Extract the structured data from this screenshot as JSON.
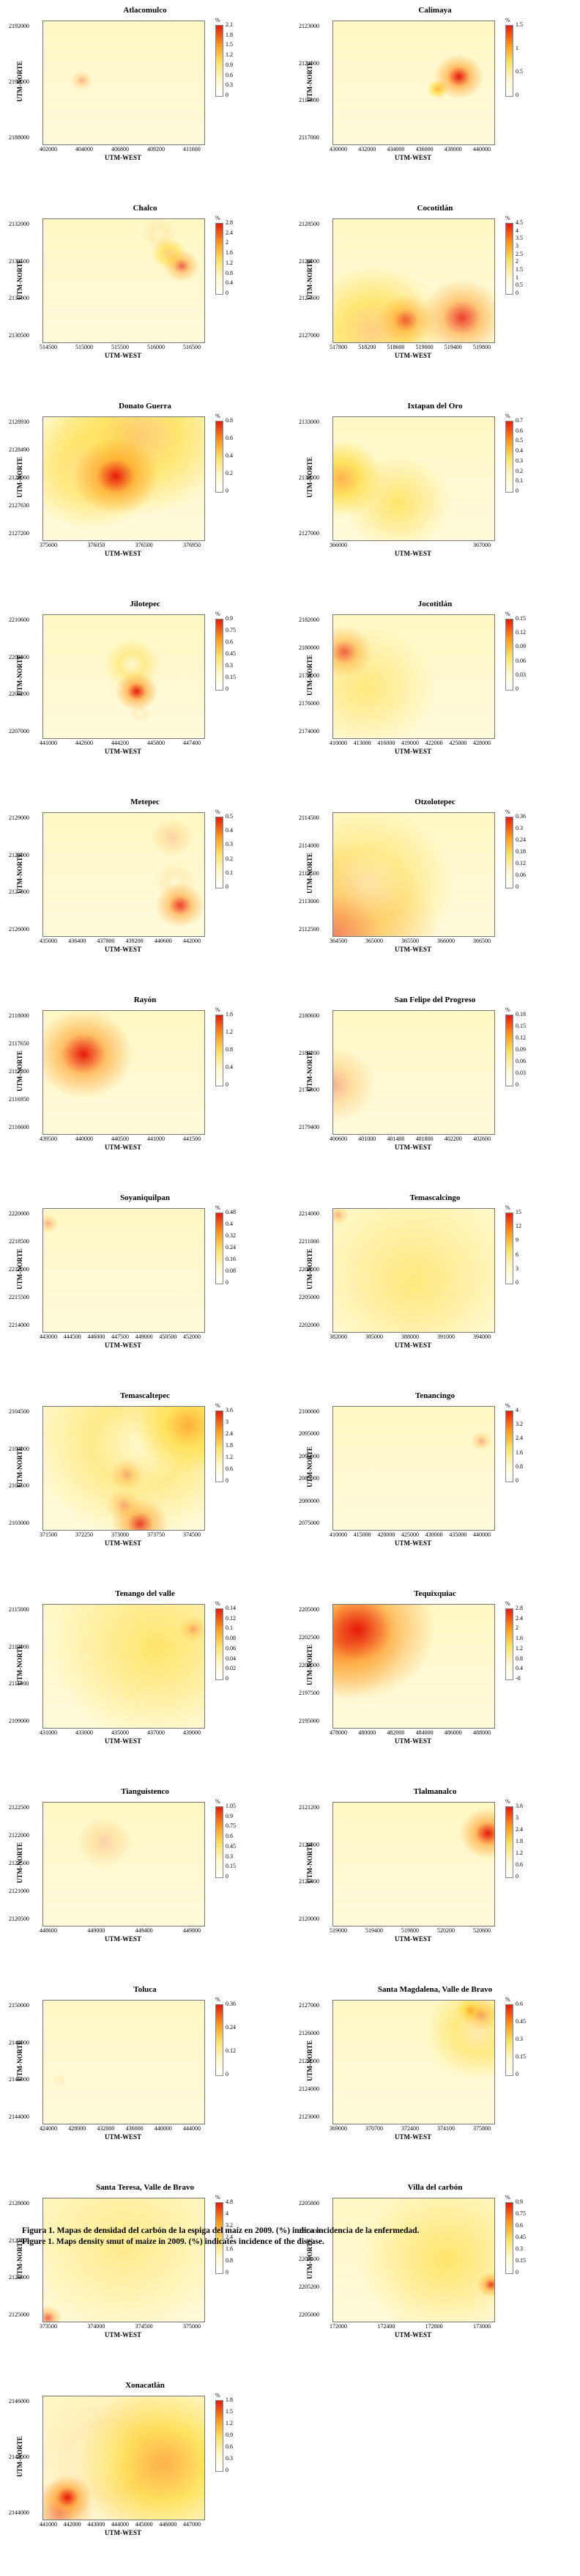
{
  "chart_data": [
    {
      "type": "heatmap",
      "title": "Atlacomulco",
      "xlabel": "UTM-WEST",
      "ylabel": "UTM-NORTE",
      "x_ticks": [
        "402000",
        "404000",
        "406800",
        "409200",
        "411600"
      ],
      "y_ticks": [
        "2192000",
        "2190000",
        "2188000"
      ],
      "color_ticks": [
        "2.1",
        "1.8",
        "1.5",
        "1.2",
        "0.9",
        "0.6",
        "0.3",
        "0"
      ],
      "color_unit": "%",
      "hotspots": [
        [
          0.24,
          0.48,
          0.03,
          0.8
        ]
      ]
    },
    {
      "type": "heatmap",
      "title": "Calimaya",
      "xlabel": "UTM-WEST",
      "ylabel": "UTM-NORTE",
      "x_ticks": [
        "430000",
        "432000",
        "434000",
        "436000",
        "438000",
        "440000"
      ],
      "y_ticks": [
        "2123000",
        "2121000",
        "2119000",
        "2117000"
      ],
      "color_ticks": [
        "1.5",
        "1",
        "0.5",
        "0"
      ],
      "color_unit": "%",
      "hotspots": [
        [
          0.78,
          0.45,
          0.07,
          1.0
        ],
        [
          0.65,
          0.55,
          0.03,
          0.6
        ]
      ]
    },
    {
      "type": "heatmap",
      "title": "Chalco",
      "xlabel": "UTM-WEST",
      "ylabel": "UTM-NORTE",
      "x_ticks": [
        "514500",
        "515000",
        "515500",
        "516000",
        "516500"
      ],
      "y_ticks": [
        "2132000",
        "2131500",
        "2131000",
        "2130500"
      ],
      "color_ticks": [
        "2.8",
        "2.4",
        "2",
        "1.6",
        "1.2",
        "0.8",
        "0.4",
        "0"
      ],
      "color_unit": "%",
      "hotspots": [
        [
          0.72,
          0.12,
          0.05,
          0.7
        ],
        [
          0.86,
          0.38,
          0.05,
          0.9
        ],
        [
          0.78,
          0.28,
          0.05,
          0.5
        ]
      ]
    },
    {
      "type": "heatmap",
      "title": "Cocotitlán",
      "xlabel": "UTM-WEST",
      "ylabel": "UTM-NORTE",
      "x_ticks": [
        "517800",
        "518200",
        "518600",
        "519000",
        "519400",
        "519800"
      ],
      "y_ticks": [
        "2128500",
        "2128000",
        "2127500",
        "2127000"
      ],
      "color_ticks": [
        "4.5",
        "4",
        "3.5",
        "3",
        "2.5",
        "2",
        "1.5",
        "1",
        "0.5",
        "0"
      ],
      "color_unit": "%",
      "hotspots": [
        [
          0.45,
          0.82,
          0.08,
          0.9
        ],
        [
          0.8,
          0.8,
          0.12,
          0.95
        ],
        [
          0.25,
          0.9,
          0.2,
          0.5
        ]
      ]
    },
    {
      "type": "heatmap",
      "title": "Donato Guerra",
      "xlabel": "UTM-WEST",
      "ylabel": "UTM-NORTE",
      "x_ticks": [
        "375600",
        "376050",
        "376500",
        "376950"
      ],
      "y_ticks": [
        "2128930",
        "2128490",
        "2128060",
        "2127630",
        "2127200"
      ],
      "color_ticks": [
        "0.8",
        "0.6",
        "0.4",
        "0.2",
        "0"
      ],
      "color_unit": "%",
      "hotspots": [
        [
          0.45,
          0.48,
          0.12,
          1.0
        ],
        [
          0.6,
          0.15,
          0.25,
          0.5
        ],
        [
          0.3,
          0.4,
          0.2,
          0.45
        ]
      ]
    },
    {
      "type": "heatmap",
      "title": "Ixtapan del Oro",
      "xlabel": "UTM-WEST",
      "ylabel": "UTM-NORTE",
      "x_ticks": [
        "366000",
        "367000"
      ],
      "y_ticks": [
        "2133000",
        "2130000",
        "2127000"
      ],
      "color_ticks": [
        "0.7",
        "0.6",
        "0.5",
        "0.4",
        "0.3",
        "0.2",
        "0.1",
        "0"
      ],
      "color_unit": "%",
      "hotspots": [
        [
          0.05,
          0.5,
          0.12,
          0.6
        ],
        [
          0.4,
          0.7,
          0.15,
          0.3
        ]
      ]
    },
    {
      "type": "heatmap",
      "title": "Jilotepec",
      "xlabel": "UTM-WEST",
      "ylabel": "UTM-NORTE",
      "x_ticks": [
        "441000",
        "442600",
        "444200",
        "445800",
        "447400"
      ],
      "y_ticks": [
        "2210600",
        "2209400",
        "2208200",
        "2207000"
      ],
      "color_ticks": [
        "0.9",
        "0.75",
        "0.6",
        "0.45",
        "0.3",
        "0.15",
        "0"
      ],
      "color_unit": "%",
      "hotspots": [
        [
          0.58,
          0.62,
          0.06,
          1.0
        ],
        [
          0.6,
          0.8,
          0.03,
          0.7
        ],
        [
          0.55,
          0.4,
          0.08,
          0.35
        ]
      ]
    },
    {
      "type": "heatmap",
      "title": "Jocotitlán",
      "xlabel": "UTM-WEST",
      "ylabel": "UTM-NORTE",
      "x_ticks": [
        "410000",
        "413000",
        "416000",
        "419000",
        "422000",
        "425000",
        "428000"
      ],
      "y_ticks": [
        "2182000",
        "2180000",
        "2178000",
        "2176000",
        "2174000"
      ],
      "color_ticks": [
        "0.15",
        "0.12",
        "0.09",
        "0.06",
        "0.03",
        "0"
      ],
      "color_unit": "%",
      "hotspots": [
        [
          0.07,
          0.3,
          0.08,
          0.9
        ],
        [
          0.2,
          0.6,
          0.2,
          0.25
        ]
      ]
    },
    {
      "type": "heatmap",
      "title": "Metepec",
      "xlabel": "UTM-WEST",
      "ylabel": "UTM-NORTE",
      "x_ticks": [
        "435000",
        "436400",
        "437800",
        "439200",
        "440600",
        "442000"
      ],
      "y_ticks": [
        "2129000",
        "2128000",
        "2127000",
        "2126000"
      ],
      "color_ticks": [
        "0.5",
        "0.4",
        "0.3",
        "0.2",
        "0.1",
        "0"
      ],
      "color_unit": "%",
      "hotspots": [
        [
          0.8,
          0.2,
          0.06,
          0.75
        ],
        [
          0.82,
          0.55,
          0.06,
          0.7
        ],
        [
          0.85,
          0.75,
          0.07,
          0.95
        ]
      ]
    },
    {
      "type": "heatmap",
      "title": "Otzolotepec",
      "xlabel": "UTM-WEST",
      "ylabel": "UTM-NORTE",
      "x_ticks": [
        "364500",
        "365000",
        "365500",
        "366000",
        "366500"
      ],
      "y_ticks": [
        "2114500",
        "2114000",
        "2113500",
        "2113000",
        "2112500"
      ],
      "color_ticks": [
        "0.36",
        "0.3",
        "0.24",
        "0.18",
        "0.12",
        "0.06",
        "0"
      ],
      "color_unit": "%",
      "hotspots": [
        [
          0.0,
          1.0,
          0.3,
          0.85
        ],
        [
          0.2,
          0.6,
          0.25,
          0.35
        ]
      ]
    },
    {
      "type": "heatmap",
      "title": "Rayón",
      "xlabel": "UTM-WEST",
      "ylabel": "UTM-NORTE",
      "x_ticks": [
        "439500",
        "440000",
        "440500",
        "441000",
        "441500"
      ],
      "y_ticks": [
        "2118000",
        "2117650",
        "2117300",
        "2116950",
        "2116600"
      ],
      "color_ticks": [
        "1.6",
        "1.2",
        "0.8",
        "0.4",
        "0"
      ],
      "color_unit": "%",
      "hotspots": [
        [
          0.25,
          0.35,
          0.14,
          1.0
        ]
      ]
    },
    {
      "type": "heatmap",
      "title": "San Felipe del Progreso",
      "xlabel": "UTM-WEST",
      "ylabel": "UTM-NORTE",
      "x_ticks": [
        "400600",
        "401000",
        "401400",
        "401800",
        "402200",
        "402600"
      ],
      "y_ticks": [
        "2180600",
        "2180200",
        "2179800",
        "2179400"
      ],
      "color_ticks": [
        "0.18",
        "0.15",
        "0.12",
        "0.09",
        "0.06",
        "0.03",
        "0"
      ],
      "color_unit": "%",
      "hotspots": [
        [
          0.0,
          0.6,
          0.12,
          0.8
        ]
      ]
    },
    {
      "type": "heatmap",
      "title": "Soyaniquilpan",
      "xlabel": "UTM-WEST",
      "ylabel": "UTM-NORTE",
      "x_ticks": [
        "443000",
        "444500",
        "446000",
        "447500",
        "449000",
        "450500",
        "452000"
      ],
      "y_ticks": [
        "2220000",
        "2218500",
        "2217000",
        "2215500",
        "2214000"
      ],
      "color_ticks": [
        "0.48",
        "0.4",
        "0.32",
        "0.24",
        "0.16",
        "0.08",
        "0"
      ],
      "color_unit": "%",
      "hotspots": [
        [
          0.03,
          0.12,
          0.03,
          0.8
        ]
      ]
    },
    {
      "type": "heatmap",
      "title": "Temascalcingo",
      "xlabel": "UTM-WEST",
      "ylabel": "UTM-NORTE",
      "x_ticks": [
        "382000",
        "385000",
        "388000",
        "391000",
        "394000"
      ],
      "y_ticks": [
        "2214000",
        "2211000",
        "2208000",
        "2205000",
        "2202000"
      ],
      "color_ticks": [
        "15",
        "12",
        "9",
        "6",
        "3",
        "0"
      ],
      "color_unit": "%",
      "hotspots": [
        [
          0.03,
          0.05,
          0.03,
          0.8
        ],
        [
          0.5,
          0.6,
          0.3,
          0.25
        ]
      ]
    },
    {
      "type": "heatmap",
      "title": "Temascaltepec",
      "xlabel": "UTM-WEST",
      "ylabel": "UTM-NORTE",
      "x_ticks": [
        "371500",
        "372250",
        "373000",
        "373750",
        "374500"
      ],
      "y_ticks": [
        "2104500",
        "2104000",
        "2103500",
        "2103000"
      ],
      "color_ticks": [
        "3.6",
        "3",
        "2.4",
        "1.8",
        "1.2",
        "0.6",
        "0"
      ],
      "color_unit": "%",
      "hotspots": [
        [
          0.52,
          0.55,
          0.05,
          0.8
        ],
        [
          0.5,
          0.8,
          0.05,
          0.8
        ],
        [
          0.6,
          0.95,
          0.08,
          0.95
        ],
        [
          0.9,
          0.15,
          0.15,
          0.6
        ],
        [
          0.6,
          0.3,
          0.3,
          0.35
        ]
      ]
    },
    {
      "type": "heatmap",
      "title": "Tenancingo",
      "xlabel": "UTM-WEST",
      "ylabel": "UTM-NORTE",
      "x_ticks": [
        "410000",
        "415000",
        "420000",
        "425000",
        "430000",
        "435000",
        "440000"
      ],
      "y_ticks": [
        "2100000",
        "2095000",
        "2090000",
        "2085000",
        "2080000",
        "2075000"
      ],
      "color_ticks": [
        "4",
        "3.2",
        "2.4",
        "1.6",
        "0.8",
        "0"
      ],
      "color_unit": "%",
      "hotspots": [
        [
          0.92,
          0.28,
          0.03,
          0.8
        ]
      ]
    },
    {
      "type": "heatmap",
      "title": "Tenango del valle",
      "xlabel": "UTM-WEST",
      "ylabel": "UTM-NORTE",
      "x_ticks": [
        "431000",
        "433000",
        "435000",
        "437000",
        "439000"
      ],
      "y_ticks": [
        "2115000",
        "2113000",
        "2111000",
        "2109000"
      ],
      "color_ticks": [
        "0.14",
        "0.12",
        "0.1",
        "0.08",
        "0.06",
        "0.04",
        "0.02",
        "0"
      ],
      "color_unit": "%",
      "hotspots": [
        [
          0.93,
          0.2,
          0.04,
          0.8
        ],
        [
          0.7,
          0.35,
          0.3,
          0.3
        ]
      ]
    },
    {
      "type": "heatmap",
      "title": "Tequixquiac",
      "xlabel": "UTM-WEST",
      "ylabel": "UTM-NORTE",
      "x_ticks": [
        "478000",
        "480000",
        "482000",
        "484000",
        "486000",
        "488000"
      ],
      "y_ticks": [
        "2205000",
        "2202500",
        "2200000",
        "2197500",
        "2195000"
      ],
      "color_ticks": [
        "2.8",
        "2.4",
        "2",
        "1.6",
        "1.2",
        "0.8",
        "0.4",
        "-0"
      ],
      "color_unit": "%",
      "hotspots": [
        [
          0.15,
          0.2,
          0.22,
          1.0
        ],
        [
          0.05,
          0.3,
          0.18,
          0.9
        ]
      ]
    },
    {
      "type": "heatmap",
      "title": "Tianguistenco",
      "xlabel": "UTM-WEST",
      "ylabel": "UTM-NORTE",
      "x_ticks": [
        "448600",
        "449000",
        "449400",
        "449800"
      ],
      "y_ticks": [
        "2122500",
        "2122000",
        "2121500",
        "2121000",
        "2120500"
      ],
      "color_ticks": [
        "1.05",
        "0.9",
        "0.75",
        "0.6",
        "0.45",
        "0.3",
        "0.15",
        "0"
      ],
      "color_unit": "%",
      "hotspots": [
        [
          0.38,
          0.32,
          0.08,
          0.75
        ]
      ]
    },
    {
      "type": "heatmap",
      "title": "Tlalmanalco",
      "xlabel": "UTM-WEST",
      "ylabel": "UTM-NORTE",
      "x_ticks": [
        "519000",
        "519400",
        "519800",
        "520200",
        "520600"
      ],
      "y_ticks": [
        "2121200",
        "2120800",
        "2120400",
        "2120000"
      ],
      "color_ticks": [
        "3.6",
        "3",
        "2.4",
        "1.8",
        "1.2",
        "0.6",
        "0"
      ],
      "color_unit": "%",
      "hotspots": [
        [
          0.96,
          0.25,
          0.08,
          1.0
        ]
      ]
    },
    {
      "type": "heatmap",
      "title": "Toluca",
      "xlabel": "UTM-WEST",
      "ylabel": "UTM-NORTE",
      "x_ticks": [
        "424000",
        "428000",
        "432000",
        "436000",
        "440000",
        "444000"
      ],
      "y_ticks": [
        "2150000",
        "2148000",
        "2146000",
        "2144000"
      ],
      "color_ticks": [
        "0.36",
        "0.24",
        "0.12",
        "0"
      ],
      "color_unit": "%",
      "hotspots": [
        [
          0.1,
          0.65,
          0.02,
          0.7
        ]
      ]
    },
    {
      "type": "heatmap",
      "title": "Santa Magdalena, Valle de Bravo",
      "xlabel": "UTM-WEST",
      "ylabel": "UTM-NORTE",
      "x_ticks": [
        "369000",
        "370700",
        "372400",
        "374100",
        "375800"
      ],
      "y_ticks": [
        "2127000",
        "2126000",
        "2125000",
        "2124000",
        "2123000"
      ],
      "color_ticks": [
        "0.6",
        "0.45",
        "0.3",
        "0.15",
        "0"
      ],
      "color_unit": "%",
      "hotspots": [
        [
          0.92,
          0.12,
          0.05,
          0.8
        ],
        [
          0.85,
          0.08,
          0.04,
          0.6
        ],
        [
          0.9,
          0.25,
          0.15,
          0.4
        ]
      ]
    },
    {
      "type": "heatmap",
      "title": "Santa Teresa, Valle de Bravo",
      "xlabel": "UTM-WEST",
      "ylabel": "UTM-NORTE",
      "x_ticks": [
        "373500",
        "374000",
        "374500",
        "375000"
      ],
      "y_ticks": [
        "2128000",
        "2127000",
        "2126000",
        "2125000"
      ],
      "color_ticks": [
        "4.8",
        "4",
        "3.2",
        "2.4",
        "1.6",
        "0.8",
        "0"
      ],
      "color_unit": "%",
      "hotspots": [
        [
          0.03,
          0.97,
          0.04,
          0.9
        ],
        [
          0.5,
          0.4,
          0.3,
          0.2
        ]
      ]
    },
    {
      "type": "heatmap",
      "title": "Villa del carbón",
      "xlabel": "UTM-WEST",
      "ylabel": "UTM-NORTE",
      "x_ticks": [
        "172000",
        "172400",
        "172800",
        "173000"
      ],
      "y_ticks": [
        "2205800",
        "2205600",
        "2205400",
        "2205200",
        "2205000"
      ],
      "color_ticks": [
        "0.9",
        "0.75",
        "0.6",
        "0.45",
        "0.3",
        "0.15",
        "0"
      ],
      "color_unit": "%",
      "hotspots": [
        [
          0.98,
          0.7,
          0.04,
          0.95
        ],
        [
          0.7,
          0.5,
          0.25,
          0.3
        ]
      ]
    },
    {
      "type": "heatmap",
      "title": "Xonacatlán",
      "xlabel": "UTM-WEST",
      "ylabel": "UTM-NORTE",
      "x_ticks": [
        "441000",
        "442000",
        "443000",
        "444000",
        "445000",
        "446000",
        "447000"
      ],
      "y_ticks": [
        "2146000",
        "2145000",
        "2144000"
      ],
      "color_ticks": [
        "1.8",
        "1.5",
        "1.2",
        "0.9",
        "0.6",
        "0.3",
        "0"
      ],
      "color_unit": "%",
      "hotspots": [
        [
          0.15,
          0.82,
          0.07,
          1.0
        ],
        [
          0.4,
          0.5,
          0.25,
          0.7
        ],
        [
          0.75,
          0.55,
          0.25,
          0.6
        ],
        [
          0.1,
          0.95,
          0.1,
          0.85
        ]
      ]
    }
  ],
  "caption": {
    "es": "Figura 1. Mapas de densidad del carbón de la espiga del maíz en 2009. (%) indica incidencia de la enfermedad.",
    "en": "Figure 1. Maps density smut of maize in 2009. (%) indicates incidence of the disease."
  },
  "colors": {
    "low": "#ffffff",
    "mid_low": "#fffbd0",
    "mid": "#ffe066",
    "high": "#ff9a1a",
    "peak": "#e81d0a"
  }
}
